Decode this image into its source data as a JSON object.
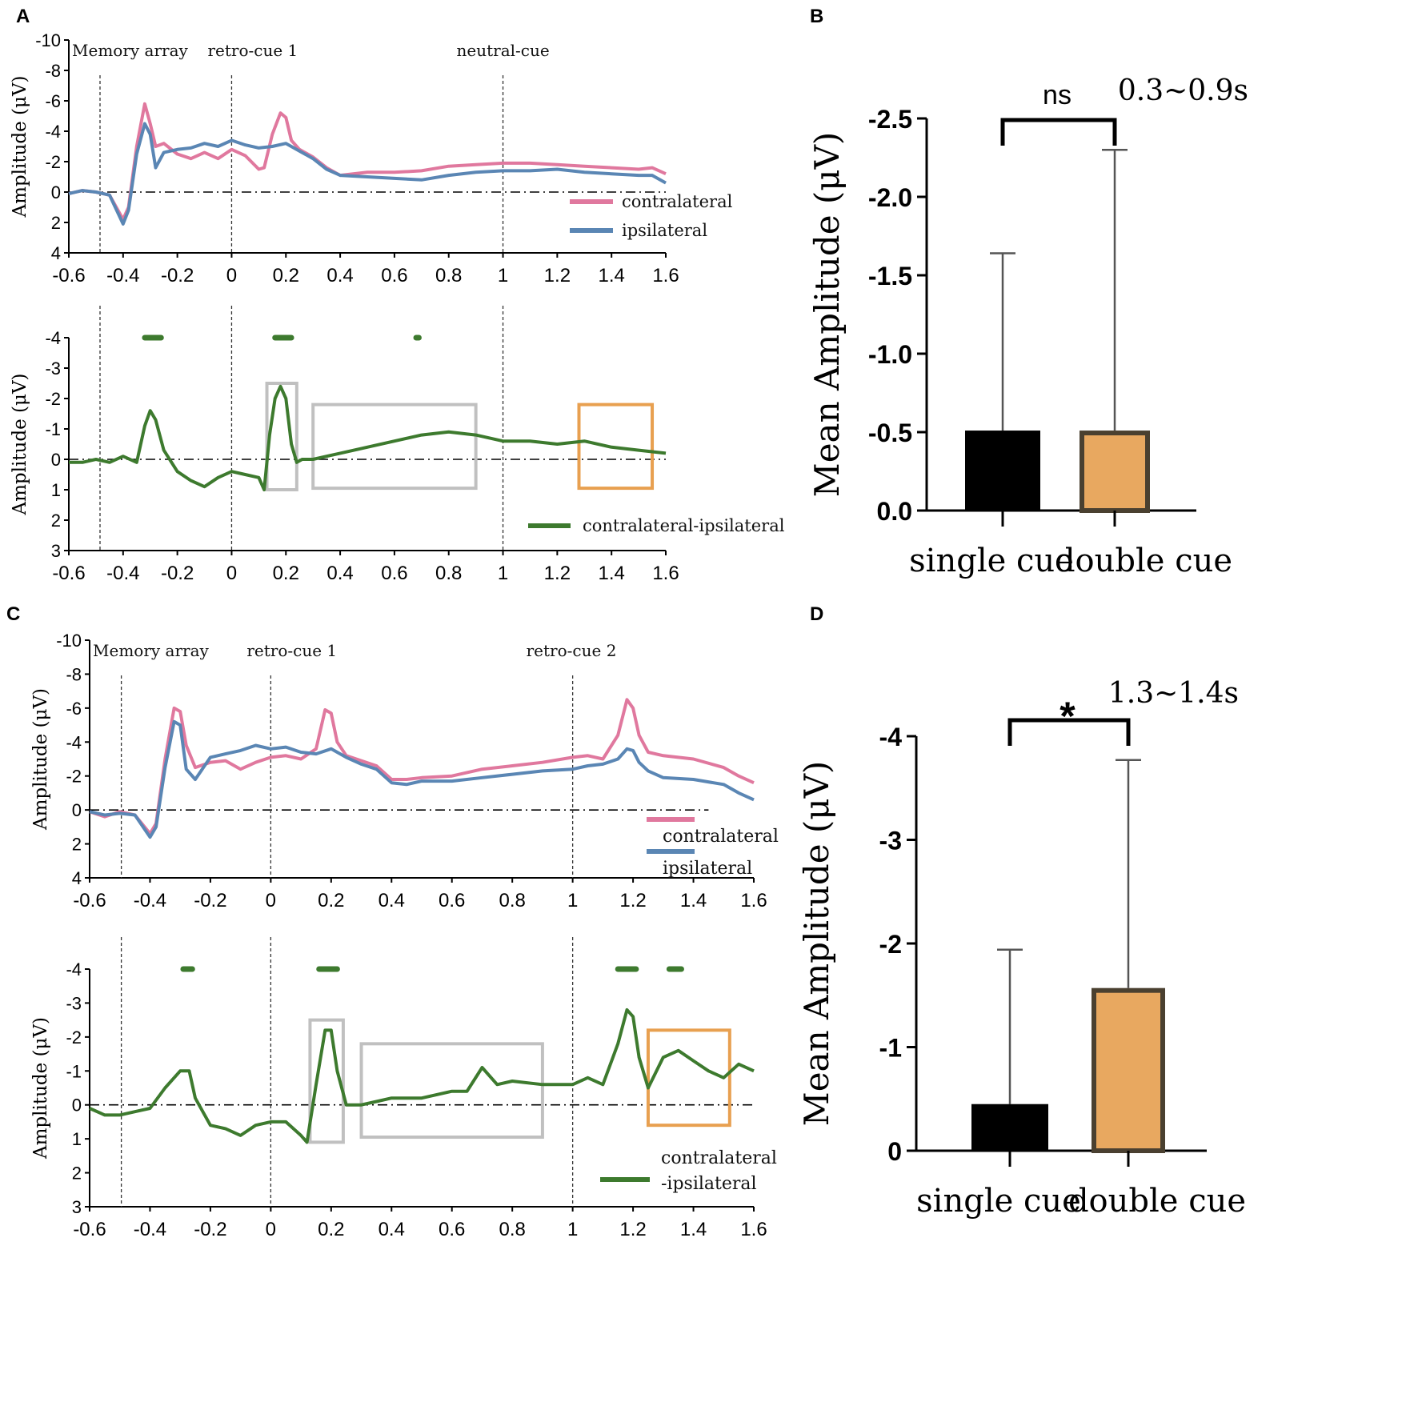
{
  "colors": {
    "contralateral": "#e0789e",
    "ipsilateral": "#5a86b4",
    "difference": "#3d7a2e",
    "single_bar": "#000000",
    "double_bar": "#e8a860",
    "double_bar_edge": "#4a4030",
    "box_gray": "#c0c0c0",
    "box_orange": "#e8a050"
  },
  "chart_data": [
    {
      "id": "A-top",
      "panel_label": "A",
      "type": "line",
      "ylabel": "Amplitude (μV)",
      "ylim": [
        4,
        -10
      ],
      "yticks": [
        -10,
        -8,
        -6,
        -4,
        -2,
        0,
        2,
        4
      ],
      "xlim": [
        -0.6,
        1.6
      ],
      "xticks": [
        "-0.6",
        "-0.4",
        "-0.2",
        "0",
        "0.2",
        "0.4",
        "0.6",
        "0.8",
        "1",
        "1.2",
        "1.4",
        "1.6"
      ],
      "event_labels": [
        {
          "label": "Memory array",
          "x": -0.485
        },
        {
          "label": "retro-cue 1",
          "x": 0.0
        },
        {
          "label": "neutral-cue",
          "x": 1.0
        }
      ],
      "legend": [
        "contralateral",
        "ipsilateral"
      ],
      "series": [
        {
          "name": "contralateral",
          "color_key": "contralateral",
          "x": [
            -0.6,
            -0.55,
            -0.5,
            -0.45,
            -0.4,
            -0.38,
            -0.35,
            -0.32,
            -0.3,
            -0.28,
            -0.25,
            -0.2,
            -0.15,
            -0.1,
            -0.05,
            0,
            0.05,
            0.1,
            0.12,
            0.15,
            0.18,
            0.2,
            0.22,
            0.25,
            0.3,
            0.35,
            0.4,
            0.5,
            0.6,
            0.7,
            0.8,
            0.9,
            1.0,
            1.1,
            1.2,
            1.3,
            1.4,
            1.5,
            1.55,
            1.6
          ],
          "y": [
            0.1,
            -0.1,
            0,
            0.2,
            1.8,
            1.0,
            -3,
            -5.8,
            -4.5,
            -3,
            -3.2,
            -2.5,
            -2.2,
            -2.6,
            -2.2,
            -2.8,
            -2.4,
            -1.5,
            -1.6,
            -3.8,
            -5.2,
            -4.9,
            -3.4,
            -2.8,
            -2.3,
            -1.6,
            -1.1,
            -1.3,
            -1.3,
            -1.4,
            -1.7,
            -1.8,
            -1.9,
            -1.9,
            -1.8,
            -1.7,
            -1.6,
            -1.5,
            -1.6,
            -1.2
          ]
        },
        {
          "name": "ipsilateral",
          "color_key": "ipsilateral",
          "x": [
            -0.6,
            -0.55,
            -0.5,
            -0.45,
            -0.4,
            -0.38,
            -0.35,
            -0.32,
            -0.3,
            -0.28,
            -0.25,
            -0.2,
            -0.15,
            -0.1,
            -0.05,
            0,
            0.05,
            0.1,
            0.15,
            0.2,
            0.25,
            0.3,
            0.35,
            0.4,
            0.5,
            0.6,
            0.7,
            0.8,
            0.9,
            1.0,
            1.1,
            1.2,
            1.3,
            1.4,
            1.5,
            1.55,
            1.6
          ],
          "y": [
            0.1,
            -0.1,
            0,
            0.2,
            2.1,
            1.2,
            -2.5,
            -4.5,
            -3.8,
            -1.6,
            -2.6,
            -2.8,
            -2.9,
            -3.2,
            -3.0,
            -3.4,
            -3.1,
            -2.9,
            -3.0,
            -3.2,
            -2.7,
            -2.2,
            -1.5,
            -1.1,
            -1.0,
            -0.9,
            -0.8,
            -1.1,
            -1.3,
            -1.4,
            -1.4,
            -1.5,
            -1.3,
            -1.2,
            -1.1,
            -1.1,
            -0.6
          ]
        }
      ]
    },
    {
      "id": "A-bottom",
      "type": "line",
      "ylabel": "Amplitude (μV)",
      "ylim": [
        3,
        -4
      ],
      "yticks": [
        -4,
        -3,
        -2,
        -1,
        0,
        1,
        2,
        3
      ],
      "xlim": [
        -0.6,
        1.6
      ],
      "xticks": [
        "-0.6",
        "-0.4",
        "-0.2",
        "0",
        "0.2",
        "0.4",
        "0.6",
        "0.8",
        "1",
        "1.2",
        "1.4",
        "1.6"
      ],
      "legend": [
        "contralateral-ipsilateral"
      ],
      "event_lines_x": [
        -0.485,
        0.0,
        1.0
      ],
      "significance_marks": [
        [
          -0.32,
          -0.26
        ],
        [
          0.16,
          0.22
        ],
        [
          0.68,
          0.69
        ]
      ],
      "boxes": [
        {
          "x": [
            0.13,
            0.24
          ],
          "y": [
            1.0,
            -2.5
          ],
          "color_key": "box_gray"
        },
        {
          "x": [
            0.3,
            0.9
          ],
          "y": [
            0.95,
            -1.8
          ],
          "color_key": "box_gray"
        },
        {
          "x": [
            1.28,
            1.55
          ],
          "y": [
            0.95,
            -1.8
          ],
          "color_key": "box_orange"
        }
      ],
      "series": [
        {
          "name": "contralateral-ipsilateral",
          "color_key": "difference",
          "x": [
            -0.6,
            -0.55,
            -0.5,
            -0.45,
            -0.4,
            -0.35,
            -0.32,
            -0.3,
            -0.28,
            -0.25,
            -0.2,
            -0.15,
            -0.1,
            -0.05,
            0,
            0.05,
            0.1,
            0.12,
            0.14,
            0.16,
            0.18,
            0.2,
            0.22,
            0.24,
            0.26,
            0.3,
            0.35,
            0.4,
            0.5,
            0.6,
            0.7,
            0.8,
            0.9,
            1.0,
            1.1,
            1.2,
            1.3,
            1.4,
            1.5,
            1.6
          ],
          "y": [
            0.1,
            0.1,
            0,
            0.1,
            -0.1,
            0.1,
            -1.1,
            -1.6,
            -1.3,
            -0.3,
            0.4,
            0.7,
            0.9,
            0.6,
            0.4,
            0.5,
            0.6,
            1.0,
            -0.8,
            -2.0,
            -2.4,
            -2.0,
            -0.5,
            0.1,
            0,
            0,
            -0.1,
            -0.2,
            -0.4,
            -0.6,
            -0.8,
            -0.9,
            -0.8,
            -0.6,
            -0.6,
            -0.5,
            -0.6,
            -0.4,
            -0.3,
            -0.2
          ]
        }
      ]
    },
    {
      "id": "B",
      "panel_label": "B",
      "type": "bar",
      "title": "0.3~0.9s",
      "ylabel": "Mean Amplitude (μV)",
      "ylim": [
        0,
        -2.5
      ],
      "yticks": [
        "-2.5",
        "-2.0",
        "-1.5",
        "-1.0",
        "-0.5",
        "0.0"
      ],
      "categories": [
        "single cue",
        "double cue"
      ],
      "values": [
        -0.51,
        -0.51
      ],
      "error_upper": [
        -1.64,
        -2.3
      ],
      "significance": "ns"
    },
    {
      "id": "C-top",
      "panel_label": "C",
      "type": "line",
      "ylabel": "Amplitude (μV)",
      "ylim": [
        4,
        -10
      ],
      "yticks": [
        -10,
        -8,
        -6,
        -4,
        -2,
        0,
        2,
        4
      ],
      "xlim": [
        -0.6,
        1.6
      ],
      "xticks": [
        "-0.6",
        "-0.4",
        "-0.2",
        "0",
        "0.2",
        "0.4",
        "0.6",
        "0.8",
        "1",
        "1.2",
        "1.4",
        "1.6"
      ],
      "event_labels": [
        {
          "label": "Memory array",
          "x": -0.495
        },
        {
          "label": "retro-cue 1",
          "x": 0.0
        },
        {
          "label": "retro-cue 2",
          "x": 1.0
        }
      ],
      "legend": [
        "contralateral",
        "ipsilateral"
      ],
      "series": [
        {
          "name": "contralateral",
          "color_key": "contralateral",
          "x": [
            -0.6,
            -0.55,
            -0.5,
            -0.45,
            -0.4,
            -0.38,
            -0.35,
            -0.32,
            -0.3,
            -0.28,
            -0.25,
            -0.2,
            -0.15,
            -0.1,
            -0.05,
            0,
            0.05,
            0.1,
            0.15,
            0.18,
            0.2,
            0.22,
            0.25,
            0.3,
            0.35,
            0.4,
            0.45,
            0.5,
            0.6,
            0.7,
            0.8,
            0.9,
            1.0,
            1.05,
            1.1,
            1.15,
            1.18,
            1.2,
            1.22,
            1.25,
            1.3,
            1.4,
            1.5,
            1.55,
            1.6
          ],
          "y": [
            0.1,
            0.4,
            0.1,
            0.3,
            1.4,
            0.8,
            -3,
            -6,
            -5.8,
            -3.8,
            -2.5,
            -2.8,
            -2.9,
            -2.4,
            -2.8,
            -3.1,
            -3.2,
            -3.0,
            -3.6,
            -5.9,
            -5.7,
            -4.0,
            -3.2,
            -2.9,
            -2.6,
            -1.8,
            -1.8,
            -1.9,
            -2.0,
            -2.4,
            -2.6,
            -2.8,
            -3.1,
            -3.2,
            -3.0,
            -4.4,
            -6.5,
            -6.0,
            -4.4,
            -3.4,
            -3.2,
            -3.0,
            -2.5,
            -2.0,
            -1.6
          ]
        },
        {
          "name": "ipsilateral",
          "color_key": "ipsilateral",
          "x": [
            -0.6,
            -0.55,
            -0.5,
            -0.45,
            -0.4,
            -0.38,
            -0.35,
            -0.32,
            -0.3,
            -0.28,
            -0.25,
            -0.2,
            -0.15,
            -0.1,
            -0.05,
            0,
            0.05,
            0.1,
            0.15,
            0.2,
            0.25,
            0.3,
            0.35,
            0.4,
            0.45,
            0.5,
            0.6,
            0.7,
            0.8,
            0.9,
            1.0,
            1.05,
            1.1,
            1.15,
            1.18,
            1.2,
            1.22,
            1.25,
            1.3,
            1.4,
            1.5,
            1.55,
            1.6
          ],
          "y": [
            0.1,
            0.3,
            0.2,
            0.3,
            1.6,
            1.0,
            -2.5,
            -5.2,
            -5.0,
            -2.4,
            -1.8,
            -3.1,
            -3.3,
            -3.5,
            -3.8,
            -3.6,
            -3.7,
            -3.4,
            -3.3,
            -3.6,
            -3.1,
            -2.7,
            -2.4,
            -1.6,
            -1.5,
            -1.7,
            -1.7,
            -1.9,
            -2.1,
            -2.3,
            -2.4,
            -2.6,
            -2.7,
            -3.0,
            -3.6,
            -3.5,
            -2.8,
            -2.3,
            -1.9,
            -1.8,
            -1.5,
            -1.0,
            -0.6
          ]
        }
      ]
    },
    {
      "id": "C-bottom",
      "type": "line",
      "ylabel": "Amplitude (μV)",
      "ylim": [
        3,
        -4
      ],
      "yticks": [
        -4,
        -3,
        -2,
        -1,
        0,
        1,
        2,
        3
      ],
      "xlim": [
        -0.6,
        1.6
      ],
      "xticks": [
        "-0.6",
        "-0.4",
        "-0.2",
        "0",
        "0.2",
        "0.4",
        "0.6",
        "0.8",
        "1",
        "1.2",
        "1.4",
        "1.6"
      ],
      "legend": [
        "contralateral",
        "-ipsilateral"
      ],
      "event_lines_x": [
        -0.495,
        0.0,
        1.0
      ],
      "significance_marks": [
        [
          -0.29,
          -0.26
        ],
        [
          0.16,
          0.22
        ],
        [
          1.15,
          1.21
        ],
        [
          1.32,
          1.36
        ]
      ],
      "boxes": [
        {
          "x": [
            0.13,
            0.24
          ],
          "y": [
            1.1,
            -2.5
          ],
          "color_key": "box_gray"
        },
        {
          "x": [
            0.3,
            0.9
          ],
          "y": [
            0.95,
            -1.8
          ],
          "color_key": "box_gray"
        },
        {
          "x": [
            1.25,
            1.52
          ],
          "y": [
            0.6,
            -2.2
          ],
          "color_key": "box_orange"
        }
      ],
      "series": [
        {
          "name": "contralateral-ipsilateral",
          "color_key": "difference",
          "x": [
            -0.6,
            -0.55,
            -0.5,
            -0.45,
            -0.4,
            -0.35,
            -0.3,
            -0.27,
            -0.25,
            -0.2,
            -0.15,
            -0.1,
            -0.05,
            0,
            0.05,
            0.1,
            0.12,
            0.15,
            0.18,
            0.2,
            0.22,
            0.25,
            0.3,
            0.35,
            0.4,
            0.5,
            0.6,
            0.65,
            0.7,
            0.75,
            0.8,
            0.9,
            1.0,
            1.05,
            1.1,
            1.15,
            1.18,
            1.2,
            1.22,
            1.25,
            1.3,
            1.35,
            1.4,
            1.45,
            1.5,
            1.55,
            1.6
          ],
          "y": [
            0.1,
            0.3,
            0.3,
            0.2,
            0.1,
            -0.5,
            -1.0,
            -1.0,
            -0.2,
            0.6,
            0.7,
            0.9,
            0.6,
            0.5,
            0.5,
            0.9,
            1.1,
            -0.6,
            -2.2,
            -2.2,
            -1.0,
            0,
            0,
            -0.1,
            -0.2,
            -0.2,
            -0.4,
            -0.4,
            -1.1,
            -0.6,
            -0.7,
            -0.6,
            -0.6,
            -0.8,
            -0.6,
            -1.8,
            -2.8,
            -2.6,
            -1.4,
            -0.5,
            -1.4,
            -1.6,
            -1.3,
            -1.0,
            -0.8,
            -1.2,
            -1.0
          ]
        }
      ]
    },
    {
      "id": "D",
      "panel_label": "D",
      "type": "bar",
      "title": "1.3~1.4s",
      "ylabel": "Mean Amplitude (μV)",
      "ylim": [
        0,
        -4
      ],
      "yticks": [
        "-4",
        "-3",
        "-2",
        "-1",
        "0"
      ],
      "categories": [
        "single cue",
        "double cue"
      ],
      "values": [
        -0.45,
        -1.57
      ],
      "error_upper": [
        -1.94,
        -3.77
      ],
      "significance": "*"
    }
  ]
}
